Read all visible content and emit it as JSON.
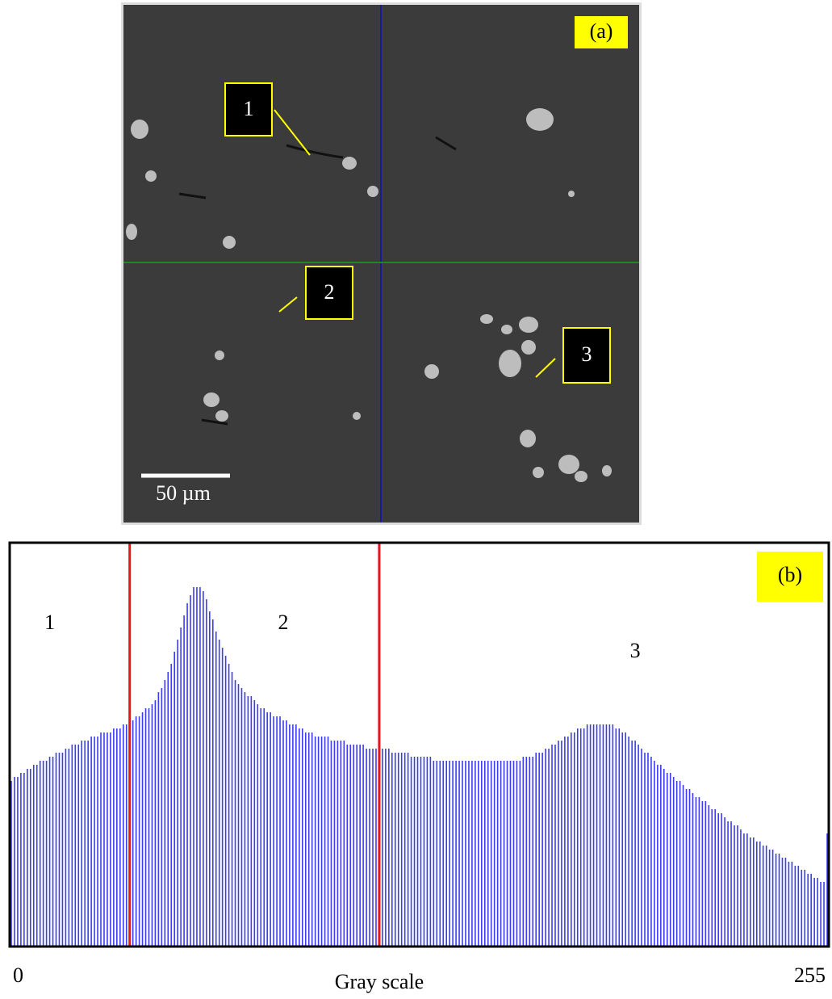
{
  "micrograph": {
    "panel_label": "(a)",
    "markers": [
      "1",
      "2",
      "3"
    ],
    "scale_bar": "50 µm"
  },
  "chart_data": {
    "type": "histogram",
    "panel_label": "(b)",
    "xlabel": "Gray scale",
    "xlim": [
      0,
      255
    ],
    "xticks": [
      0,
      255
    ],
    "ylim": [
      0,
      100
    ],
    "color": "#3b3bf5",
    "thresholds": [
      37,
      115
    ],
    "threshold_color": "#e8141b",
    "regions": [
      {
        "label": "1",
        "x": 12
      },
      {
        "label": "2",
        "x": 85
      },
      {
        "label": "3",
        "x": 195
      }
    ],
    "values": [
      41,
      42,
      42,
      43,
      43,
      44,
      44,
      45,
      45,
      46,
      46,
      46,
      47,
      47,
      48,
      48,
      48,
      49,
      49,
      50,
      50,
      50,
      51,
      51,
      51,
      52,
      52,
      52,
      53,
      53,
      53,
      53,
      54,
      54,
      54,
      55,
      55,
      55,
      56,
      57,
      57,
      58,
      59,
      59,
      60,
      61,
      63,
      64,
      66,
      68,
      70,
      73,
      76,
      79,
      82,
      85,
      87,
      89,
      89,
      89,
      88,
      86,
      83,
      81,
      78,
      76,
      74,
      72,
      70,
      68,
      66,
      65,
      64,
      63,
      62,
      62,
      61,
      60,
      59,
      59,
      58,
      58,
      57,
      57,
      57,
      56,
      56,
      55,
      55,
      55,
      54,
      54,
      53,
      53,
      53,
      52,
      52,
      52,
      52,
      52,
      51,
      51,
      51,
      51,
      51,
      50,
      50,
      50,
      50,
      50,
      50,
      49,
      49,
      49,
      49,
      49,
      49,
      49,
      49,
      48,
      48,
      48,
      48,
      48,
      48,
      47,
      47,
      47,
      47,
      47,
      47,
      47,
      46,
      46,
      46,
      46,
      46,
      46,
      46,
      46,
      46,
      46,
      46,
      46,
      46,
      46,
      46,
      46,
      46,
      46,
      46,
      46,
      46,
      46,
      46,
      46,
      46,
      46,
      46,
      46,
      47,
      47,
      47,
      47,
      48,
      48,
      48,
      49,
      49,
      50,
      50,
      51,
      51,
      52,
      52,
      53,
      53,
      54,
      54,
      54,
      55,
      55,
      55,
      55,
      55,
      55,
      55,
      55,
      55,
      54,
      54,
      53,
      53,
      52,
      51,
      51,
      50,
      49,
      48,
      48,
      47,
      46,
      45,
      45,
      44,
      43,
      43,
      42,
      41,
      41,
      40,
      39,
      39,
      38,
      37,
      37,
      36,
      36,
      35,
      34,
      34,
      33,
      33,
      32,
      31,
      31,
      30,
      30,
      29,
      28,
      28,
      27,
      27,
      26,
      26,
      25,
      25,
      24,
      24,
      23,
      23,
      22,
      22,
      21,
      21,
      20,
      20,
      19,
      19,
      18,
      18,
      17,
      17,
      16,
      16,
      28
    ]
  }
}
